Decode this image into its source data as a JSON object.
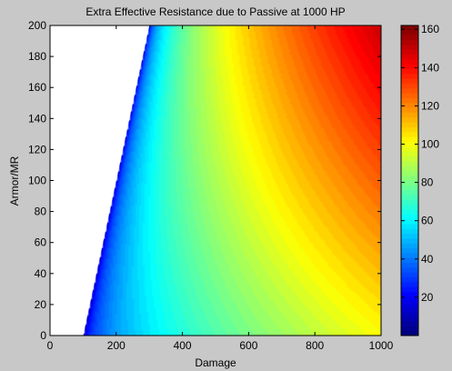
{
  "chart_data": {
    "type": "heatmap",
    "title": "Extra Effective Resistance due to Passive at 1000 HP",
    "xlabel": "Damage",
    "ylabel": "Armor/MR",
    "xlim": [
      0,
      1000
    ],
    "ylim": [
      0,
      200
    ],
    "x_ticks": [
      0,
      200,
      400,
      600,
      800,
      1000
    ],
    "y_ticks": [
      0,
      20,
      40,
      60,
      80,
      100,
      120,
      140,
      160,
      180,
      200
    ],
    "colorbar": {
      "range": [
        0,
        162
      ],
      "ticks": [
        20,
        40,
        60,
        80,
        100,
        120,
        140,
        160
      ],
      "colormap": "jet"
    },
    "undefined_region": [
      {
        "x": 0,
        "y": 0
      },
      {
        "x": 100,
        "y": 0
      },
      {
        "x": 300,
        "y": 200
      },
      {
        "x": 0,
        "y": 200
      }
    ],
    "undefined_color": "#ffffff",
    "sample_values": [
      {
        "damage": 350,
        "armor": 0,
        "value": 40
      },
      {
        "damage": 500,
        "armor": 20,
        "value": 70
      },
      {
        "damage": 600,
        "armor": 100,
        "value": 90
      },
      {
        "damage": 800,
        "armor": 100,
        "value": 115
      },
      {
        "damage": 1000,
        "armor": 200,
        "value": 160
      }
    ]
  }
}
